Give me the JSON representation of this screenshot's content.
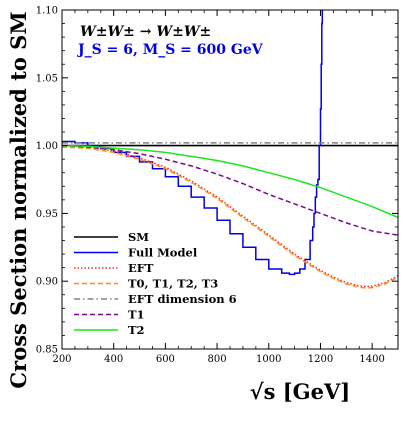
{
  "chart_data": {
    "type": "line",
    "title": "",
    "xlabel": "√s [GeV]",
    "ylabel": "Cross Section normalized to SM",
    "xlim": [
      200,
      1500
    ],
    "ylim": [
      0.85,
      1.1
    ],
    "x_ticks": [
      200,
      400,
      600,
      800,
      1000,
      1200,
      1400
    ],
    "y_ticks": [
      0.85,
      0.9,
      0.95,
      1.0,
      1.05,
      1.1
    ],
    "x_tick_labels": [
      "200",
      "400",
      "600",
      "800",
      "1000",
      "1200",
      "1400"
    ],
    "y_tick_labels": [
      "0.85",
      "0.90",
      "0.95",
      "1.00",
      "1.05",
      "1.10"
    ],
    "grid": false,
    "legend_position": "bottom-left",
    "annotations": {
      "process": "W±W± → W±W±",
      "params": "J_S = 6, M_S = 600 GeV"
    },
    "series": [
      {
        "name": "SM",
        "color": "#000000",
        "style": "solid",
        "x": [
          200,
          1500
        ],
        "y": [
          1.0,
          1.0
        ]
      },
      {
        "name": "Full Model",
        "color": "#0000e6",
        "style": "solid",
        "x": [
          200,
          250,
          300,
          350,
          400,
          450,
          500,
          550,
          600,
          650,
          700,
          750,
          800,
          850,
          900,
          950,
          1000,
          1050,
          1080,
          1100,
          1120,
          1140,
          1160,
          1170,
          1175,
          1180,
          1185,
          1190,
          1195,
          1200,
          1203,
          1205,
          1207
        ],
        "y": [
          1.003,
          1.002,
          1.0,
          0.998,
          0.995,
          0.992,
          0.988,
          0.983,
          0.977,
          0.97,
          0.962,
          0.954,
          0.945,
          0.935,
          0.925,
          0.916,
          0.909,
          0.906,
          0.905,
          0.906,
          0.909,
          0.916,
          0.93,
          0.94,
          0.95,
          0.962,
          0.971,
          0.975,
          1.0,
          1.027,
          1.06,
          1.09,
          1.1
        ]
      },
      {
        "name": "EFT",
        "color": "#ff2a2a",
        "style": "dotted",
        "x": [
          200,
          300,
          400,
          500,
          600,
          700,
          800,
          900,
          1000,
          1100,
          1150,
          1200,
          1250,
          1300,
          1350,
          1380,
          1400,
          1450,
          1500
        ],
        "y": [
          1.0,
          0.999,
          0.996,
          0.991,
          0.984,
          0.974,
          0.962,
          0.948,
          0.934,
          0.92,
          0.914,
          0.908,
          0.903,
          0.899,
          0.8965,
          0.896,
          0.8963,
          0.899,
          0.904
        ]
      },
      {
        "name": "T0, T1, T2, T3",
        "color": "#ff8c1a",
        "style": "dashed",
        "x": [
          200,
          300,
          400,
          500,
          600,
          700,
          800,
          900,
          1000,
          1100,
          1150,
          1200,
          1250,
          1300,
          1350,
          1380,
          1400,
          1450,
          1500
        ],
        "y": [
          0.999,
          0.998,
          0.995,
          0.99,
          0.983,
          0.973,
          0.961,
          0.947,
          0.933,
          0.919,
          0.913,
          0.907,
          0.902,
          0.898,
          0.8955,
          0.895,
          0.8953,
          0.898,
          0.903
        ]
      },
      {
        "name": "EFT dimension 6",
        "color": "#808080",
        "style": "dashdot",
        "x": [
          200,
          1500
        ],
        "y": [
          1.002,
          1.002
        ]
      },
      {
        "name": "T1",
        "color": "#7a0a8c",
        "style": "dashed",
        "x": [
          200,
          300,
          400,
          500,
          600,
          700,
          800,
          900,
          1000,
          1100,
          1200,
          1300,
          1400,
          1500
        ],
        "y": [
          1.0,
          0.999,
          0.997,
          0.994,
          0.99,
          0.985,
          0.979,
          0.972,
          0.964,
          0.957,
          0.95,
          0.943,
          0.937,
          0.934
        ]
      },
      {
        "name": "T2",
        "color": "#1ee61e",
        "style": "solid",
        "x": [
          200,
          300,
          400,
          500,
          600,
          700,
          800,
          900,
          1000,
          1100,
          1200,
          1300,
          1400,
          1500
        ],
        "y": [
          1.0,
          0.9995,
          0.998,
          0.997,
          0.995,
          0.992,
          0.989,
          0.985,
          0.98,
          0.975,
          0.969,
          0.962,
          0.955,
          0.947
        ]
      }
    ]
  }
}
